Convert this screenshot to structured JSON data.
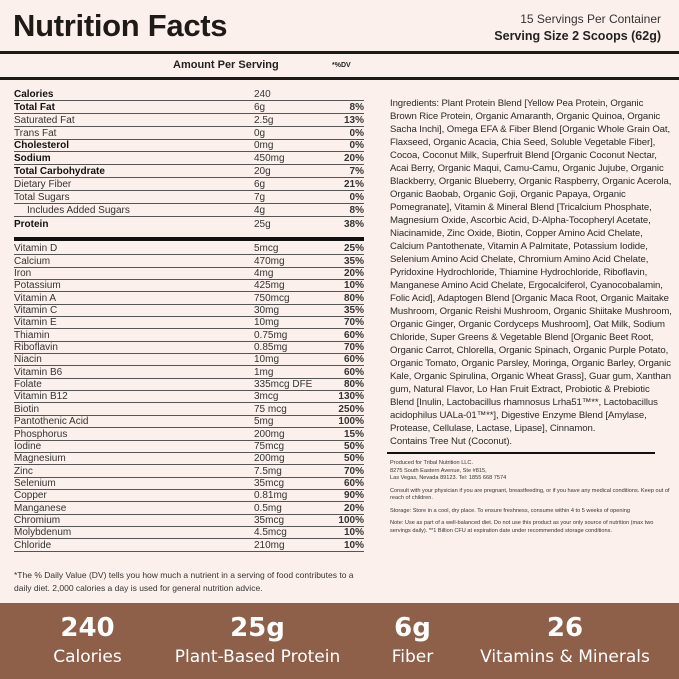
{
  "header": {
    "title": "Nutrition Facts",
    "servings": "15 Servings Per Container",
    "serving_size": "Serving Size 2 Scoops (62g)",
    "amount_per_serving": "Amount Per Serving",
    "dv_label": "*%DV"
  },
  "macros": [
    {
      "name": "Calories",
      "amount": "240",
      "dv": "",
      "bold": true
    },
    {
      "name": "Total Fat",
      "amount": "6g",
      "dv": "8%",
      "bold": true
    },
    {
      "name": "Saturated Fat",
      "amount": "2.5g",
      "dv": "13%"
    },
    {
      "name": "Trans Fat",
      "amount": "0g",
      "dv": "0%"
    },
    {
      "name": "Cholesterol",
      "amount": "0mg",
      "dv": "0%",
      "bold": true
    },
    {
      "name": "Sodium",
      "amount": "450mg",
      "dv": "20%",
      "bold": true
    },
    {
      "name": "Total Carbohydrate",
      "amount": "20g",
      "dv": "7%",
      "bold": true
    },
    {
      "name": "Dietary Fiber",
      "amount": "6g",
      "dv": "21%"
    },
    {
      "name": "Total Sugars",
      "amount": "7g",
      "dv": "0%"
    },
    {
      "name": "Includes Added Sugars",
      "amount": "4g",
      "dv": "8%",
      "indent": true
    },
    {
      "name": "Protein",
      "amount": "25g",
      "dv": "38%",
      "bold": true
    }
  ],
  "vitamins": [
    {
      "name": "Vitamin D",
      "amount": "5mcg",
      "dv": "25%"
    },
    {
      "name": "Calcium",
      "amount": "470mg",
      "dv": "35%"
    },
    {
      "name": "Iron",
      "amount": "4mg",
      "dv": "20%"
    },
    {
      "name": "Potassium",
      "amount": "425mg",
      "dv": "10%"
    },
    {
      "name": "Vitamin A",
      "amount": "750mcg",
      "dv": "80%"
    },
    {
      "name": "Vitamin C",
      "amount": "30mg",
      "dv": "35%"
    },
    {
      "name": "Vitamin E",
      "amount": "10mg",
      "dv": "70%"
    },
    {
      "name": "Thiamin",
      "amount": "0.75mg",
      "dv": "60%"
    },
    {
      "name": "Riboflavin",
      "amount": "0.85mg",
      "dv": "70%"
    },
    {
      "name": "Niacin",
      "amount": "10mg",
      "dv": "60%"
    },
    {
      "name": "Vitamin B6",
      "amount": "1mg",
      "dv": "60%"
    },
    {
      "name": "Folate",
      "amount": "335mcg DFE",
      "dv": "80%"
    },
    {
      "name": "Vitamin B12",
      "amount": "3mcg",
      "dv": "130%"
    },
    {
      "name": "Biotin",
      "amount": "75 mcg",
      "dv": "250%"
    },
    {
      "name": "Pantothenic Acid",
      "amount": "5mg",
      "dv": "100%"
    },
    {
      "name": "Phosphorus",
      "amount": "200mg",
      "dv": "15%"
    },
    {
      "name": "Iodine",
      "amount": "75mcg",
      "dv": "50%"
    },
    {
      "name": "Magnesium",
      "amount": "200mg",
      "dv": "50%"
    },
    {
      "name": "Zinc",
      "amount": "7.5mg",
      "dv": "70%"
    },
    {
      "name": "Selenium",
      "amount": "35mcg",
      "dv": "60%"
    },
    {
      "name": "Copper",
      "amount": "0.81mg",
      "dv": "90%"
    },
    {
      "name": "Manganese",
      "amount": "0.5mg",
      "dv": "20%"
    },
    {
      "name": "Chromium",
      "amount": "35mcg",
      "dv": "100%"
    },
    {
      "name": "Molybdenum",
      "amount": "4.5mcg",
      "dv": "10%"
    },
    {
      "name": "Chloride",
      "amount": "210mg",
      "dv": "10%"
    }
  ],
  "footnote": "*The % Daily Value (DV) tells you how much a nutrient in a serving of food contributes to a daily diet. 2,000 calories a day is used for general nutrition advice.",
  "ingredients": "Ingredients: Plant Protein Blend [Yellow Pea Protein, Organic Brown Rice Protein, Organic Amaranth, Organic Quinoa, Organic Sacha Inchi], Omega EFA & Fiber Blend [Organic Whole Grain Oat, Flaxseed, Organic Acacia, Chia Seed, Soluble Vegetable Fiber], Cocoa, Coconut Milk, Superfruit Blend [Organic Coconut Nectar, Acai Berry, Organic Maqui, Camu-Camu, Organic Jujube, Organic Blackberry, Organic Blueberry, Organic Raspberry, Organic Acerola, Organic Baobab, Organic Goji, Organic Papaya, Organic Pomegranate], Vitamin & Mineral Blend [Tricalcium Phosphate, Magnesium Oxide, Ascorbic Acid, D-Alpha-Tocopheryl Acetate, Niacinamide, Zinc Oxide, Biotin, Copper Amino Acid Chelate, Calcium Pantothenate, Vitamin A Palmitate, Potassium Iodide, Selenium Amino Acid Chelate, Chromium Amino Acid Chelate, Pyridoxine Hydrochloride, Thiamine Hydrochloride, Riboflavin, Manganese Amino Acid Chelate, Ergocalciferol, Cyanocobalamin, Folic Acid], Adaptogen Blend [Organic Maca Root, Organic Maitake Mushroom, Organic Reishi Mushroom, Organic Shiitake Mushroom, Organic Ginger, Organic Cordyceps Mushroom], Oat Milk, Sodium Chloride, Super Greens & Vegetable Blend [Organic Beet Root, Organic Carrot, Chlorella, Organic Spinach, Organic Purple Potato, Organic Tomato, Organic Parsley, Moringa, Organic Barley, Organic Kale, Organic Spirulina, Organic Wheat Grass], Guar gum, Xanthan gum, Natural Flavor, Lo Han Fruit Extract, Probiotic & Prebiotic Blend [Inulin, Lactobacillus rhamnosus Lrha51™**, Lactobacillus acidophilus UALa-01™**], Digestive Enzyme Blend [Amylase, Protease, Cellulase, Lactase, Lipase], Cinnamon.",
  "allergen": "Contains Tree Nut (Coconut).",
  "produced": [
    "Produced for Tribal Nutrition LLC.",
    "8275 South Eastern Avenue, Ste #815,",
    "Las Vegas, Nevada 89123. Tel: 1855 668 7574"
  ],
  "consult": "Consult with your physician if you are pregnant, breastfeeding, or if you have any medical conditions. Keep out of reach of children.",
  "storage": "Storage: Store in a cool, dry place. To ensure freshness, consume within 4 to 5 weeks of opening",
  "note": "Note: Use as part of a well-balanced diet. Do not use this product as your only source of nutrition (max two servings daily). **1 Billion CFU at expiration date under recommended storage conditions.",
  "stats": [
    {
      "value": "240",
      "label": "Calories"
    },
    {
      "value": "25g",
      "label": "Plant-Based Protein"
    },
    {
      "value": "6g",
      "label": "Fiber"
    },
    {
      "value": "26",
      "label": "Vitamins & Minerals"
    }
  ],
  "colors": {
    "background": "#fcf0ec",
    "band": "#8f6049",
    "text": "#1d1a18"
  }
}
